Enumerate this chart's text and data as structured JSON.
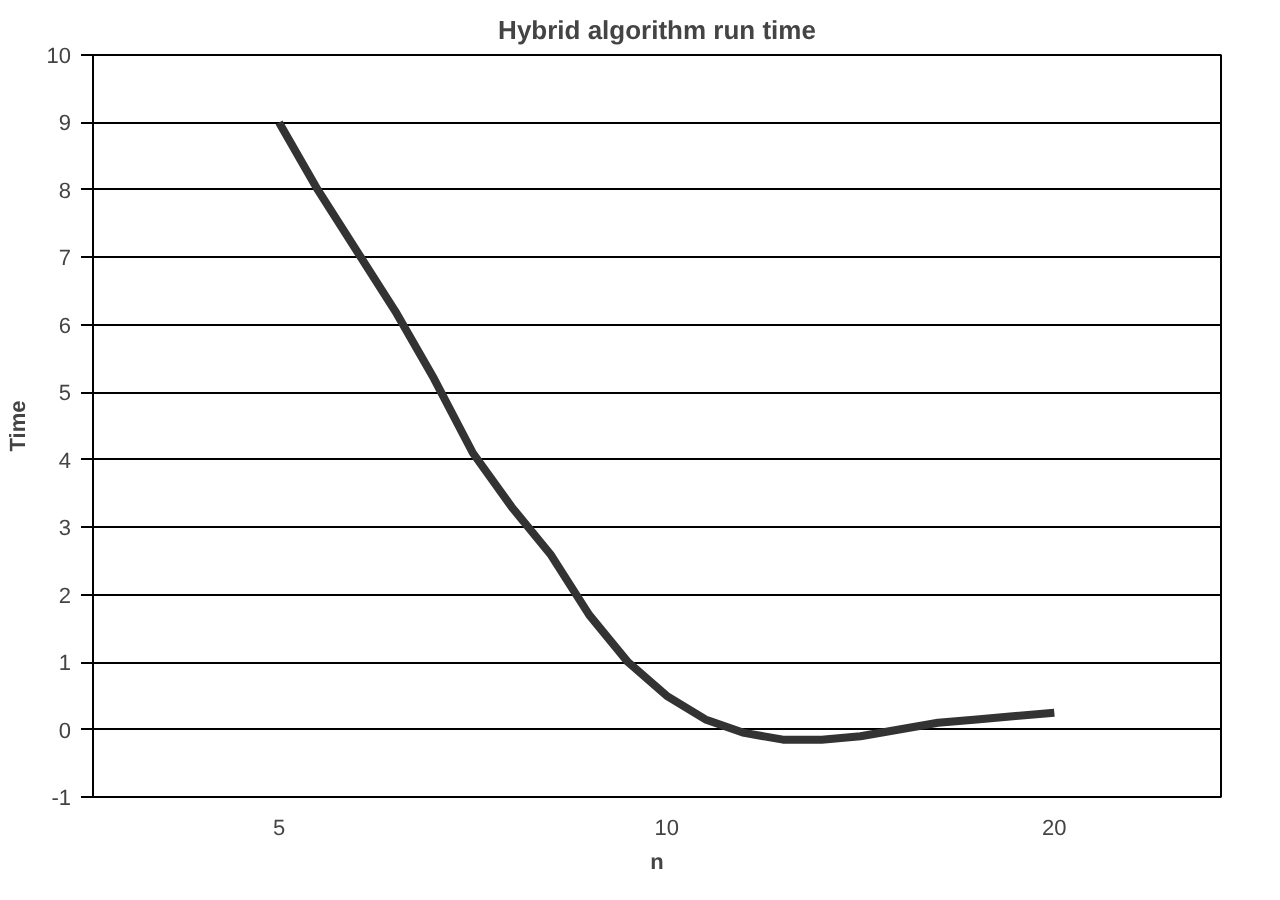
{
  "chart_data": {
    "type": "line",
    "title": "Hybrid algorithm run time",
    "xlabel": "n",
    "ylabel": "Time",
    "categories": [
      "5",
      null,
      null,
      null,
      null,
      null,
      null,
      null,
      null,
      null,
      "10",
      null,
      null,
      null,
      null,
      null,
      null,
      null,
      null,
      null,
      "20"
    ],
    "series": [
      {
        "color": "#333333",
        "values": [
          9,
          8.0,
          7.1,
          6.2,
          5.2,
          4.1,
          3.3,
          2.6,
          1.7,
          1.0,
          0.5,
          0.15,
          -0.05,
          -0.15,
          -0.15,
          -0.1,
          0.0,
          0.1,
          0.15,
          0.2,
          0.25
        ]
      }
    ],
    "ylim": [
      -1,
      10
    ],
    "yticks": [
      -1,
      0,
      1,
      2,
      3,
      4,
      5,
      6,
      7,
      8,
      9,
      10
    ],
    "grid": "y",
    "marker": "none",
    "line_style": "solid"
  }
}
